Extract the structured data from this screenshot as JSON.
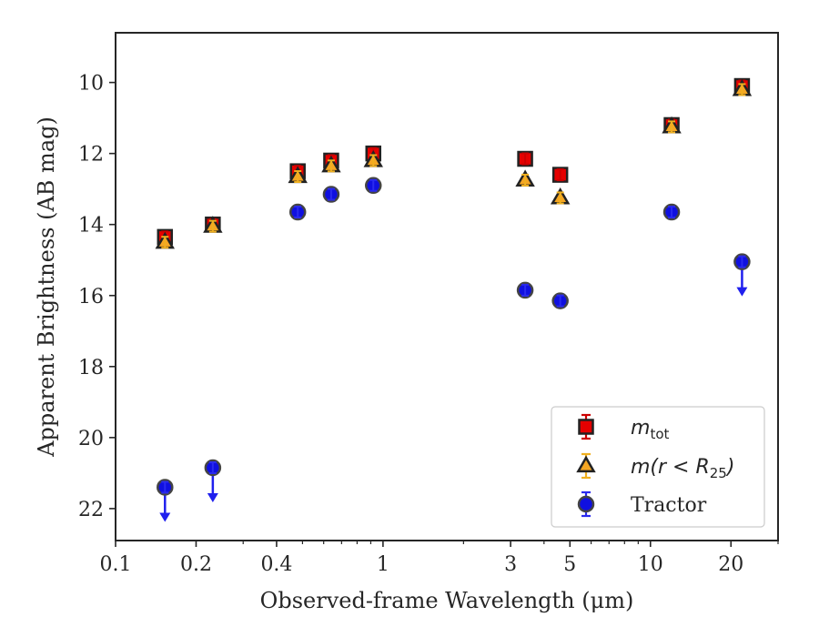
{
  "chart_data": {
    "type": "scatter",
    "xscale": "log",
    "xlim": [
      0.1,
      30
    ],
    "ylim": [
      22.9,
      8.6
    ],
    "y_inverted": true,
    "xlabel": "Observed-frame Wavelength (μm)",
    "ylabel": "Apparent Brightness (AB mag)",
    "x_ticks": [
      0.1,
      0.2,
      0.4,
      1,
      3,
      5,
      10,
      20
    ],
    "x_tick_labels": [
      "0.1",
      "0.2",
      "0.4",
      "1",
      "3",
      "5",
      "10",
      "20"
    ],
    "y_ticks": [
      10,
      12,
      14,
      16,
      18,
      20,
      22
    ],
    "y_tick_labels": [
      "10",
      "12",
      "14",
      "16",
      "18",
      "20",
      "22"
    ],
    "grid": false,
    "legend_position": "bottom-right",
    "series": [
      {
        "name": "m_tot",
        "legend_label_main": "m",
        "legend_label_sub": "tot",
        "marker": "square",
        "color": "#e50000",
        "error_color": "#cc0000",
        "points": [
          {
            "x": 0.153,
            "y": 14.35
          },
          {
            "x": 0.231,
            "y": 14.0
          },
          {
            "x": 0.48,
            "y": 12.5
          },
          {
            "x": 0.64,
            "y": 12.2
          },
          {
            "x": 0.92,
            "y": 12.0
          },
          {
            "x": 3.4,
            "y": 12.15
          },
          {
            "x": 4.6,
            "y": 12.6
          },
          {
            "x": 12.0,
            "y": 11.2
          },
          {
            "x": 22.0,
            "y": 10.1
          }
        ]
      },
      {
        "name": "m(r < R25)",
        "legend_label_main": "m(r < R",
        "legend_label_sub": "25",
        "legend_label_tail": ")",
        "marker": "triangle",
        "color": "#f5a623",
        "error_color": "#f0b020",
        "points": [
          {
            "x": 0.153,
            "y": 14.5
          },
          {
            "x": 0.231,
            "y": 14.05
          },
          {
            "x": 0.48,
            "y": 12.65
          },
          {
            "x": 0.64,
            "y": 12.35
          },
          {
            "x": 0.92,
            "y": 12.2
          },
          {
            "x": 3.4,
            "y": 12.75
          },
          {
            "x": 4.6,
            "y": 13.25
          },
          {
            "x": 12.0,
            "y": 11.25
          },
          {
            "x": 22.0,
            "y": 10.2
          }
        ]
      },
      {
        "name": "Tractor",
        "legend_label_main": "Tractor",
        "marker": "circle",
        "color": "#1010e0",
        "error_color": "#2a2aee",
        "points": [
          {
            "x": 0.153,
            "y": 21.4,
            "upper_limit": true
          },
          {
            "x": 0.231,
            "y": 20.85,
            "upper_limit": true
          },
          {
            "x": 0.48,
            "y": 13.65
          },
          {
            "x": 0.64,
            "y": 13.15
          },
          {
            "x": 0.92,
            "y": 12.9
          },
          {
            "x": 3.4,
            "y": 15.85
          },
          {
            "x": 4.6,
            "y": 16.15
          },
          {
            "x": 12.0,
            "y": 13.65
          },
          {
            "x": 22.0,
            "y": 15.05,
            "upper_limit": true
          }
        ]
      }
    ]
  }
}
